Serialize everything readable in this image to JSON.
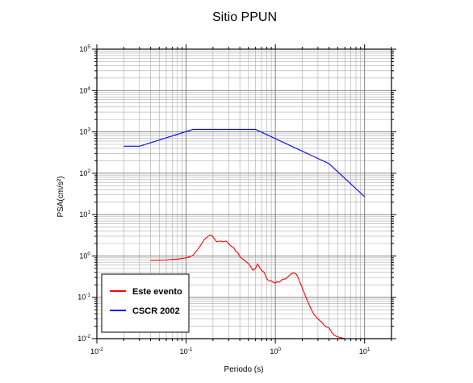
{
  "chart_data": {
    "type": "line",
    "title": "Sitio PPUN",
    "xlabel": "Periodo (s)",
    "ylabel": "PSA(cm/s²)",
    "xscale": "log",
    "yscale": "log",
    "xlim": [
      0.01,
      20
    ],
    "ylim": [
      0.01,
      100000
    ],
    "x_ticks": [
      {
        "base": "10",
        "exp": "-2",
        "value": 0.01
      },
      {
        "base": "10",
        "exp": "-1",
        "value": 0.1
      },
      {
        "base": "10",
        "exp": "0",
        "value": 1
      },
      {
        "base": "10",
        "exp": "1",
        "value": 10
      }
    ],
    "y_ticks": [
      {
        "base": "10",
        "exp": "-2",
        "value": 0.01
      },
      {
        "base": "10",
        "exp": "-1",
        "value": 0.1
      },
      {
        "base": "10",
        "exp": "0",
        "value": 1
      },
      {
        "base": "10",
        "exp": "1",
        "value": 10
      },
      {
        "base": "10",
        "exp": "2",
        "value": 100
      },
      {
        "base": "10",
        "exp": "3",
        "value": 1000
      },
      {
        "base": "10",
        "exp": "4",
        "value": 10000
      },
      {
        "base": "10",
        "exp": "5",
        "value": 100000
      }
    ],
    "grid": true,
    "legend_position": "bottom-left",
    "series": [
      {
        "name": "Este evento",
        "color": "#ff0000",
        "x": [
          0.04,
          0.05,
          0.06,
          0.07,
          0.08,
          0.09,
          0.1,
          0.11,
          0.12,
          0.13,
          0.14,
          0.15,
          0.16,
          0.17,
          0.18,
          0.19,
          0.2,
          0.21,
          0.22,
          0.24,
          0.26,
          0.28,
          0.3,
          0.32,
          0.34,
          0.36,
          0.38,
          0.4,
          0.43,
          0.46,
          0.5,
          0.53,
          0.56,
          0.6,
          0.63,
          0.66,
          0.7,
          0.75,
          0.8,
          0.85,
          0.9,
          0.95,
          1.0,
          1.05,
          1.1,
          1.15,
          1.2,
          1.3,
          1.4,
          1.5,
          1.6,
          1.7,
          1.8,
          1.9,
          2.0,
          2.2,
          2.4,
          2.6,
          2.8,
          3.0,
          3.3,
          3.6,
          4.0,
          4.3,
          4.6,
          5.0,
          5.5,
          6.0
        ],
        "y": [
          0.78,
          0.79,
          0.8,
          0.82,
          0.84,
          0.87,
          0.9,
          0.95,
          1.05,
          1.3,
          1.6,
          2.0,
          2.5,
          2.8,
          3.1,
          3.2,
          2.9,
          2.5,
          2.2,
          2.3,
          2.2,
          2.3,
          2.0,
          1.7,
          1.6,
          1.3,
          1.2,
          0.95,
          0.85,
          0.75,
          0.65,
          0.55,
          0.45,
          0.5,
          0.65,
          0.55,
          0.45,
          0.4,
          0.28,
          0.25,
          0.25,
          0.23,
          0.22,
          0.24,
          0.23,
          0.25,
          0.27,
          0.28,
          0.32,
          0.37,
          0.39,
          0.37,
          0.3,
          0.22,
          0.17,
          0.1,
          0.065,
          0.045,
          0.035,
          0.03,
          0.025,
          0.02,
          0.018,
          0.014,
          0.012,
          0.011,
          0.0105,
          0.01
        ]
      },
      {
        "name": "CSCR 2002",
        "color": "#0000ff",
        "x": [
          0.02,
          0.03,
          0.12,
          0.6,
          4.0,
          10.0
        ],
        "y": [
          450,
          450,
          1150,
          1150,
          170,
          27
        ]
      }
    ]
  }
}
